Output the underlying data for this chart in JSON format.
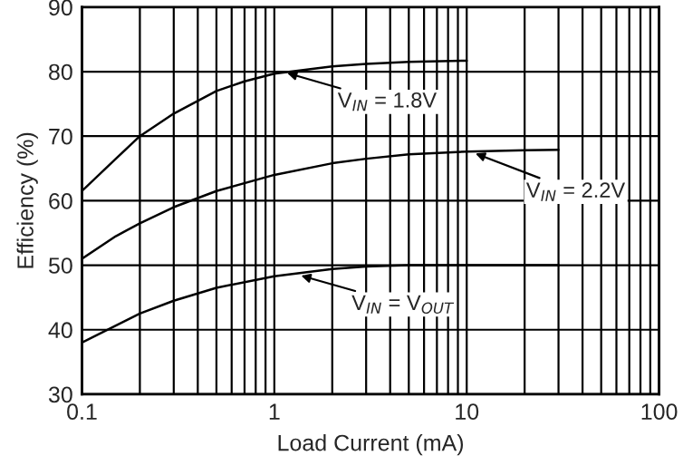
{
  "chart_data": {
    "type": "line",
    "xlabel": "Load Current (mA)",
    "ylabel": "Efficiency (%)",
    "log": "x",
    "grid": true,
    "legend": false,
    "marker": "none",
    "line_style": "solid",
    "xlim": [
      0.1,
      100
    ],
    "xticks": [
      0.1,
      1,
      10,
      100
    ],
    "ylim": [
      30,
      90
    ],
    "yticks": [
      30,
      40,
      50,
      60,
      70,
      80,
      90
    ],
    "series": [
      {
        "color": "#000000",
        "x": [
          0.1,
          0.15,
          0.2,
          0.3,
          0.5,
          0.7,
          1,
          2,
          3,
          5,
          10
        ],
        "values": [
          61.5,
          66.5,
          70,
          73.5,
          77,
          78.5,
          79.7,
          80.8,
          81.2,
          81.5,
          81.7
        ]
      },
      {
        "color": "#000000",
        "x": [
          0.1,
          0.15,
          0.2,
          0.3,
          0.5,
          1,
          2,
          3,
          5,
          10,
          20,
          30
        ],
        "values": [
          51,
          54.5,
          56.5,
          59,
          61.5,
          64,
          65.8,
          66.5,
          67.2,
          67.6,
          67.8,
          67.9
        ]
      },
      {
        "color": "#000000",
        "x": [
          0.1,
          0.2,
          0.3,
          0.5,
          1,
          2,
          3,
          5,
          10,
          30
        ],
        "values": [
          38,
          42.5,
          44.5,
          46.5,
          48.3,
          49.4,
          49.8,
          50,
          50,
          50
        ]
      }
    ],
    "annotations": [
      {
        "text": "V$_{IN}$ = 1.8V",
        "x": 1.1,
        "y": 80
      },
      {
        "text": "V$_{IN}$ = 2.2V",
        "x": 10.5,
        "y": 67.6
      },
      {
        "text": "V$_{IN}$ = V$_{OUT}$",
        "x": 1.3,
        "y": 48.6
      }
    ]
  }
}
